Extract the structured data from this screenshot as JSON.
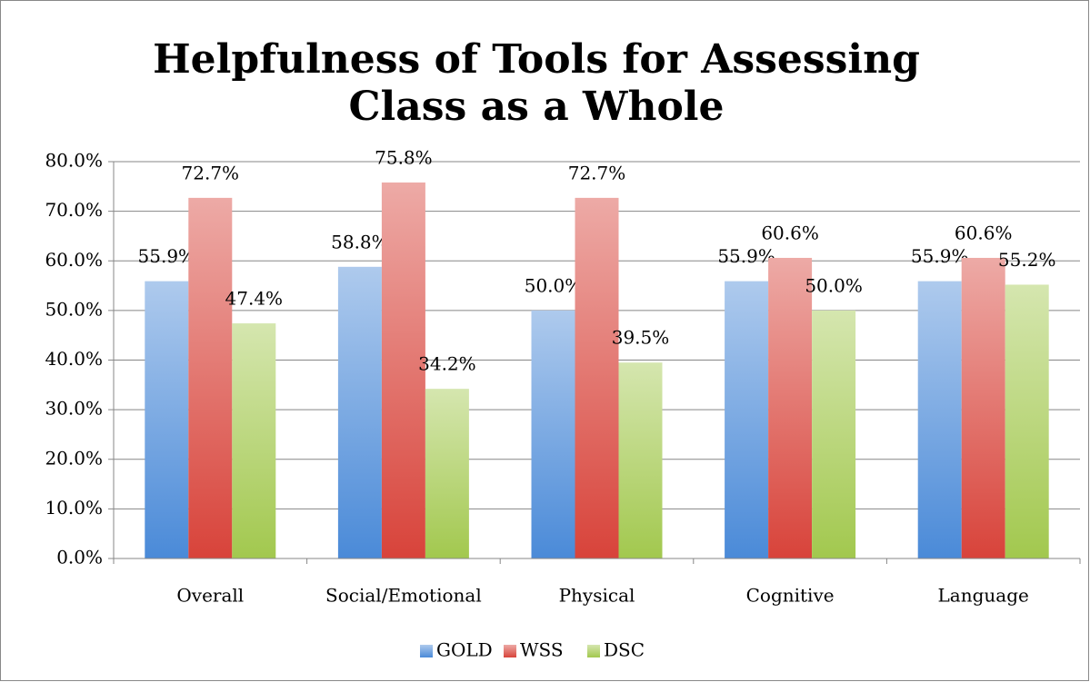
{
  "chart_data": {
    "type": "bar",
    "title": "Helpfulness of Tools for Assessing Class as a Whole",
    "categories": [
      "Overall",
      "Social/Emotional",
      "Physical",
      "Cognitive",
      "Language"
    ],
    "series": [
      {
        "name": "GOLD",
        "color": "#4a8ad8",
        "values": [
          55.9,
          58.8,
          50.0,
          55.9,
          55.9
        ],
        "value_labels": [
          "55.9%",
          "58.8%",
          "50.0%",
          "55.9%",
          "55.9%"
        ]
      },
      {
        "name": "WSS",
        "color": "#d8433a",
        "values": [
          72.7,
          75.8,
          72.7,
          60.6,
          60.6
        ],
        "value_labels": [
          "72.7%",
          "75.8%",
          "72.7%",
          "60.6%",
          "60.6%"
        ]
      },
      {
        "name": "DSC",
        "color": "#a2c84e",
        "values": [
          47.4,
          34.2,
          39.5,
          50.0,
          55.2
        ],
        "value_labels": [
          "47.4%",
          "34.2%",
          "39.5%",
          "50.0%",
          "55.2%"
        ]
      }
    ],
    "ylim": [
      0,
      80
    ],
    "yticks": [
      {
        "value": 0,
        "label": "0.0%"
      },
      {
        "value": 10,
        "label": "10.0%"
      },
      {
        "value": 20,
        "label": "20.0%"
      },
      {
        "value": 30,
        "label": "30.0%"
      },
      {
        "value": 40,
        "label": "40.0%"
      },
      {
        "value": 50,
        "label": "50.0%"
      },
      {
        "value": 60,
        "label": "60.0%"
      },
      {
        "value": 70,
        "label": "70.0%"
      },
      {
        "value": 80,
        "label": "80.0%"
      }
    ],
    "grid": true,
    "legend": "bottom"
  }
}
